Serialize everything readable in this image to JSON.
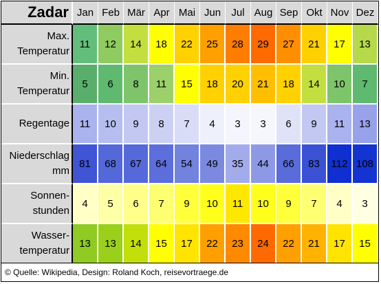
{
  "city": "Zadar",
  "months": [
    "Jan",
    "Feb",
    "Mär",
    "Apr",
    "Mai",
    "Jun",
    "Jul",
    "Aug",
    "Sep",
    "Okt",
    "Nov",
    "Dez"
  ],
  "rows": [
    {
      "label_lines": [
        "Max.",
        "Temperatur"
      ],
      "values": [
        "11",
        "12",
        "14",
        "18",
        "22",
        "25",
        "28",
        "29",
        "27",
        "21",
        "17",
        "13"
      ],
      "colors": [
        "#63be7b",
        "#8fcb60",
        "#c3df3f",
        "#ffff00",
        "#ffd100",
        "#ff9f00",
        "#ff7d00",
        "#ff6a00",
        "#ff8f00",
        "#ffd000",
        "#ffff00",
        "#b5d94a"
      ]
    },
    {
      "label_lines": [
        "Min.",
        "Temperatur"
      ],
      "values": [
        "5",
        "6",
        "8",
        "11",
        "15",
        "18",
        "20",
        "21",
        "18",
        "14",
        "10",
        "7"
      ],
      "colors": [
        "#5aae6b",
        "#5fb96e",
        "#7dc46b",
        "#9bd06a",
        "#ffff00",
        "#ffd100",
        "#ffd100",
        "#ffbf00",
        "#ffd100",
        "#c3df3f",
        "#7dc46b",
        "#5fb96e"
      ]
    },
    {
      "label_lines": [
        "Regentage"
      ],
      "values": [
        "11",
        "10",
        "9",
        "8",
        "7",
        "4",
        "3",
        "3",
        "6",
        "9",
        "11",
        "13"
      ],
      "colors": [
        "#aab3ee",
        "#b6bef0",
        "#c2c8f2",
        "#ccd1f4",
        "#d8dcf7",
        "#eef0fc",
        "#f4f5fd",
        "#f6f7fd",
        "#e0e3f8",
        "#c2c8f2",
        "#aab3ee",
        "#98a2ea"
      ]
    },
    {
      "label_lines": [
        "Niederschlag",
        "mm"
      ],
      "values": [
        "81",
        "68",
        "67",
        "64",
        "54",
        "49",
        "35",
        "44",
        "66",
        "83",
        "112",
        "108"
      ],
      "colors": [
        "#3f55d6",
        "#5468d9",
        "#5669da",
        "#5c6edb",
        "#7283de",
        "#7b8ae0",
        "#a3acea",
        "#8d99e5",
        "#5a6cda",
        "#3b51d4",
        "#0f2fd1",
        "#1434d2"
      ]
    },
    {
      "label_lines": [
        "Sonnen-",
        "stunden"
      ],
      "values": [
        "4",
        "5",
        "6",
        "7",
        "9",
        "10",
        "11",
        "10",
        "9",
        "7",
        "4",
        "3"
      ],
      "colors": [
        "#ffffc6",
        "#ffffa6",
        "#ffff8a",
        "#ffff72",
        "#ffff3a",
        "#ffff1c",
        "#ffe800",
        "#ffff1c",
        "#ffff3a",
        "#ffff72",
        "#ffffc6",
        "#ffffe2"
      ]
    },
    {
      "label_lines": [
        "Wasser-",
        "temperatur"
      ],
      "values": [
        "13",
        "13",
        "14",
        "15",
        "17",
        "22",
        "23",
        "24",
        "22",
        "21",
        "17",
        "15"
      ],
      "colors": [
        "#8fcb22",
        "#9bd01a",
        "#c3df0a",
        "#ffff00",
        "#ffe400",
        "#ff9f00",
        "#ff8a00",
        "#ff6a00",
        "#ff9f00",
        "#ffb200",
        "#ffe400",
        "#ffff00"
      ]
    }
  ],
  "footer": "© Quelle: Wikipedia, Design: Roland Koch, reisevortraege.de"
}
